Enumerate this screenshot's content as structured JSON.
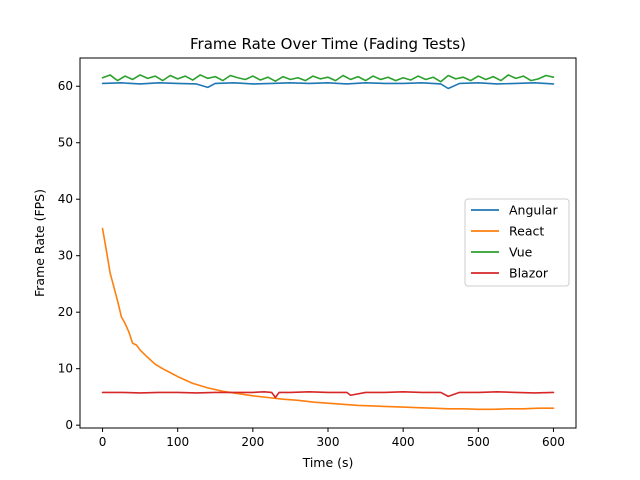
{
  "chart_data": {
    "type": "line",
    "title": "Frame Rate Over Time (Fading Tests)",
    "xlabel": "Time (s)",
    "ylabel": "Frame Rate (FPS)",
    "xlim": [
      -30,
      630
    ],
    "ylim": [
      -0.5,
      65
    ],
    "xticks": [
      "0",
      "100",
      "200",
      "300",
      "400",
      "500",
      "600"
    ],
    "yticks": [
      "0",
      "10",
      "20",
      "30",
      "40",
      "50",
      "60"
    ],
    "legend_position": "center-right",
    "grid": false,
    "series": [
      {
        "name": "Angular",
        "color": "#1f77b4",
        "x": [
          0,
          25,
          50,
          75,
          100,
          125,
          140,
          150,
          175,
          200,
          225,
          250,
          275,
          300,
          325,
          350,
          375,
          400,
          425,
          450,
          460,
          475,
          500,
          525,
          550,
          575,
          600
        ],
        "y": [
          60.5,
          60.6,
          60.4,
          60.6,
          60.5,
          60.4,
          59.8,
          60.5,
          60.6,
          60.4,
          60.5,
          60.6,
          60.5,
          60.6,
          60.4,
          60.6,
          60.5,
          60.5,
          60.6,
          60.4,
          59.6,
          60.5,
          60.6,
          60.4,
          60.5,
          60.6,
          60.4
        ]
      },
      {
        "name": "React",
        "color": "#ff7f0e",
        "x": [
          0,
          5,
          10,
          15,
          20,
          25,
          30,
          35,
          40,
          45,
          50,
          60,
          70,
          80,
          90,
          100,
          110,
          120,
          130,
          140,
          150,
          160,
          170,
          180,
          190,
          200,
          220,
          240,
          260,
          280,
          300,
          320,
          340,
          360,
          380,
          400,
          420,
          440,
          460,
          480,
          500,
          520,
          540,
          560,
          580,
          600
        ],
        "y": [
          34.8,
          31,
          27,
          24.5,
          22,
          19.2,
          18,
          16.5,
          14.5,
          14.2,
          13.3,
          12,
          10.8,
          10,
          9.3,
          8.6,
          8.0,
          7.4,
          7.0,
          6.6,
          6.3,
          6.0,
          5.8,
          5.6,
          5.4,
          5.2,
          4.9,
          4.6,
          4.4,
          4.1,
          3.9,
          3.7,
          3.5,
          3.4,
          3.3,
          3.2,
          3.1,
          3.0,
          2.9,
          2.9,
          2.8,
          2.8,
          2.9,
          2.9,
          3.0,
          3.0
        ]
      },
      {
        "name": "Vue",
        "color": "#2ca02c",
        "x": [
          0,
          10,
          20,
          30,
          40,
          50,
          60,
          70,
          80,
          90,
          100,
          110,
          120,
          130,
          140,
          150,
          160,
          170,
          180,
          190,
          200,
          210,
          220,
          230,
          240,
          250,
          260,
          270,
          280,
          290,
          300,
          310,
          320,
          330,
          340,
          350,
          360,
          370,
          380,
          390,
          400,
          410,
          420,
          430,
          440,
          450,
          460,
          470,
          480,
          490,
          500,
          510,
          520,
          530,
          540,
          550,
          560,
          570,
          580,
          590,
          600
        ],
        "y": [
          61.5,
          62,
          61,
          61.8,
          61.2,
          62,
          61.4,
          61.8,
          61,
          61.9,
          61.3,
          61.8,
          61.1,
          62,
          61.4,
          61.7,
          61,
          61.9,
          61.5,
          61.2,
          61.8,
          61.1,
          61.6,
          60.9,
          61.7,
          61.2,
          61.5,
          61,
          61.8,
          61.3,
          61.6,
          61,
          61.9,
          61.2,
          61.7,
          61,
          61.8,
          61.2,
          61.6,
          61,
          61.5,
          61.1,
          61.8,
          61.2,
          61.6,
          60.8,
          61.9,
          61.3,
          61.6,
          61,
          61.8,
          61.2,
          61.7,
          61,
          62,
          61.4,
          61.8,
          61,
          61.3,
          61.9,
          61.6
        ]
      },
      {
        "name": "Blazor",
        "color": "#d62728",
        "x": [
          0,
          25,
          50,
          75,
          100,
          125,
          150,
          175,
          200,
          215,
          225,
          230,
          235,
          250,
          275,
          300,
          325,
          330,
          350,
          375,
          400,
          425,
          450,
          460,
          475,
          500,
          525,
          550,
          575,
          600
        ],
        "y": [
          5.8,
          5.8,
          5.7,
          5.8,
          5.8,
          5.7,
          5.8,
          5.8,
          5.8,
          5.9,
          5.8,
          4.9,
          5.8,
          5.8,
          5.9,
          5.8,
          5.8,
          5.3,
          5.8,
          5.8,
          5.9,
          5.8,
          5.8,
          5.1,
          5.8,
          5.8,
          5.9,
          5.8,
          5.7,
          5.8
        ]
      }
    ]
  }
}
